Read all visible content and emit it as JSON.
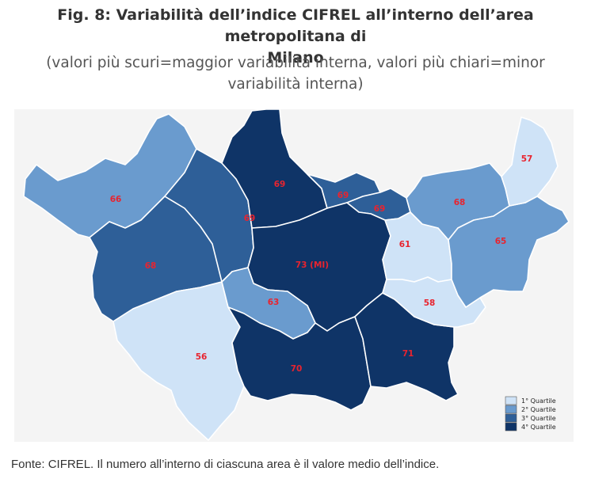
{
  "title_line1": "Fig. 8: Variabilità dell’indice CIFREL all’interno dell’area metropolitana di",
  "title_line2": "Milano",
  "subtitle_line1": "(valori più scuri=maggior variabilità interna, valori più chiari=minor",
  "subtitle_line2": "variabilità interna)",
  "footnote": "Fonte: CIFREL. Il numero all’interno di ciascuna area è il valore medio dell’indice.",
  "colors": {
    "q1": "#cfe3f7",
    "q2": "#6a9bce",
    "q3": "#2e5f98",
    "q4": "#0f3467",
    "value_text": "#e8242f",
    "map_background": "#f4f4f4"
  },
  "legend": [
    {
      "label": "1° Quartile",
      "quartile": 1
    },
    {
      "label": "2° Quartile",
      "quartile": 2
    },
    {
      "label": "3° Quartile",
      "quartile": 3
    },
    {
      "label": "4° Quartile",
      "quartile": 4
    }
  ],
  "chart_data": {
    "type": "choropleth",
    "title": "Fig. 8: Variabilità dell’indice CIFREL all’interno dell’area metropolitana di Milano",
    "legend_placement": "bottom-right",
    "regions": [
      {
        "label": "66",
        "value": 66,
        "quartile": 2
      },
      {
        "label": "68",
        "value": 68,
        "quartile": 3
      },
      {
        "label": "56",
        "value": 56,
        "quartile": 1
      },
      {
        "label": "69",
        "value": 69,
        "quartile": 3
      },
      {
        "label": "69",
        "value": 69,
        "quartile": 4
      },
      {
        "label": "69",
        "value": 69,
        "quartile": 3
      },
      {
        "label": "69",
        "value": 69,
        "quartile": 3
      },
      {
        "label": "73 (MI)",
        "value": 73,
        "quartile": 4
      },
      {
        "label": "63",
        "value": 63,
        "quartile": 2
      },
      {
        "label": "70",
        "value": 70,
        "quartile": 4
      },
      {
        "label": "71",
        "value": 71,
        "quartile": 4
      },
      {
        "label": "61",
        "value": 61,
        "quartile": 1
      },
      {
        "label": "58",
        "value": 58,
        "quartile": 1
      },
      {
        "label": "68",
        "value": 68,
        "quartile": 2
      },
      {
        "label": "65",
        "value": 65,
        "quartile": 2
      },
      {
        "label": "57",
        "value": 57,
        "quartile": 1
      }
    ]
  }
}
